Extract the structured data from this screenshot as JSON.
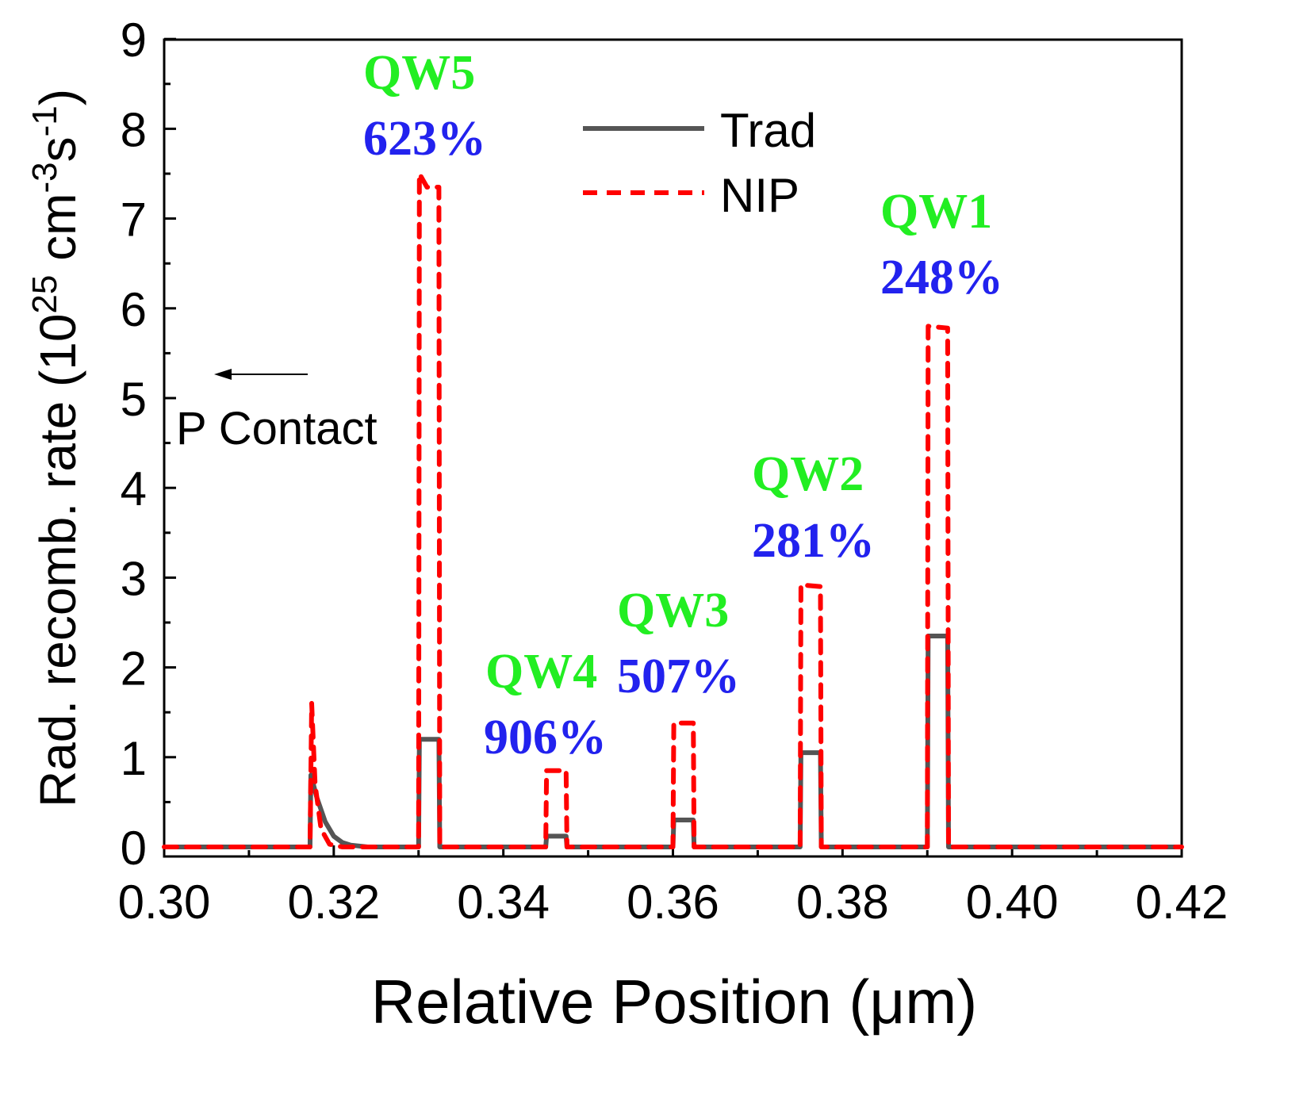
{
  "chart_data": {
    "type": "line",
    "title": "",
    "xlabel": "Relative Position (μm)",
    "ylabel_main": "Rad. recomb. rate (10",
    "ylabel_exp1": "25",
    "ylabel_mid": " cm",
    "ylabel_exp2": "-3",
    "ylabel_s": "s",
    "ylabel_exp3": "-1",
    "ylabel_end": ")",
    "xlim": [
      0.3,
      0.42
    ],
    "ylim": [
      0,
      9
    ],
    "xticks": [
      "0.30",
      "0.32",
      "0.34",
      "0.36",
      "0.38",
      "0.40",
      "0.42"
    ],
    "yticks": [
      "0",
      "1",
      "2",
      "3",
      "4",
      "5",
      "6",
      "7",
      "8",
      "9"
    ],
    "grid": false,
    "legend_position": "top-center",
    "series": [
      {
        "name": "Trad",
        "color": "#555555",
        "style": "solid",
        "points": [
          [
            0.3,
            0
          ],
          [
            0.3172,
            0
          ],
          [
            0.3173,
            0.8
          ],
          [
            0.318,
            0.55
          ],
          [
            0.319,
            0.28
          ],
          [
            0.32,
            0.12
          ],
          [
            0.321,
            0.05
          ],
          [
            0.322,
            0.02
          ],
          [
            0.324,
            0
          ],
          [
            0.33,
            0
          ],
          [
            0.3301,
            1.2
          ],
          [
            0.3324,
            1.2
          ],
          [
            0.3325,
            0
          ],
          [
            0.345,
            0
          ],
          [
            0.3451,
            0.12
          ],
          [
            0.3474,
            0.12
          ],
          [
            0.3475,
            0
          ],
          [
            0.36,
            0
          ],
          [
            0.3601,
            0.3
          ],
          [
            0.3624,
            0.3
          ],
          [
            0.3625,
            0
          ],
          [
            0.375,
            0
          ],
          [
            0.3751,
            1.05
          ],
          [
            0.3774,
            1.05
          ],
          [
            0.3775,
            0
          ],
          [
            0.39,
            0
          ],
          [
            0.3901,
            2.35
          ],
          [
            0.3924,
            2.35
          ],
          [
            0.3925,
            0
          ],
          [
            0.42,
            0
          ]
        ]
      },
      {
        "name": "NIP",
        "color": "#ff0000",
        "style": "dashed",
        "points": [
          [
            0.3,
            0
          ],
          [
            0.3172,
            0
          ],
          [
            0.3174,
            1.6
          ],
          [
            0.3178,
            0.7
          ],
          [
            0.3185,
            0.2
          ],
          [
            0.3195,
            0.03
          ],
          [
            0.321,
            0
          ],
          [
            0.33,
            0
          ],
          [
            0.3301,
            7.5
          ],
          [
            0.331,
            7.35
          ],
          [
            0.3324,
            7.35
          ],
          [
            0.3325,
            0
          ],
          [
            0.345,
            0
          ],
          [
            0.3451,
            0.85
          ],
          [
            0.3474,
            0.85
          ],
          [
            0.3475,
            0
          ],
          [
            0.36,
            0
          ],
          [
            0.3601,
            1.38
          ],
          [
            0.3624,
            1.38
          ],
          [
            0.3625,
            0
          ],
          [
            0.375,
            0
          ],
          [
            0.3751,
            2.92
          ],
          [
            0.3774,
            2.9
          ],
          [
            0.3775,
            0
          ],
          [
            0.39,
            0
          ],
          [
            0.3901,
            5.8
          ],
          [
            0.3924,
            5.78
          ],
          [
            0.3925,
            0
          ],
          [
            0.42,
            0
          ]
        ]
      }
    ],
    "annotations": {
      "qw5": {
        "label": "QW5",
        "pct": "623%"
      },
      "qw4": {
        "label": "QW4",
        "pct": "906%"
      },
      "qw3": {
        "label": "QW3",
        "pct": "507%"
      },
      "qw2": {
        "label": "QW2",
        "pct": "281%"
      },
      "qw1": {
        "label": "QW1",
        "pct": "248%"
      },
      "contact": "P Contact"
    },
    "colors": {
      "qw_label": "#22ee22",
      "pct": "#2222ee"
    }
  }
}
